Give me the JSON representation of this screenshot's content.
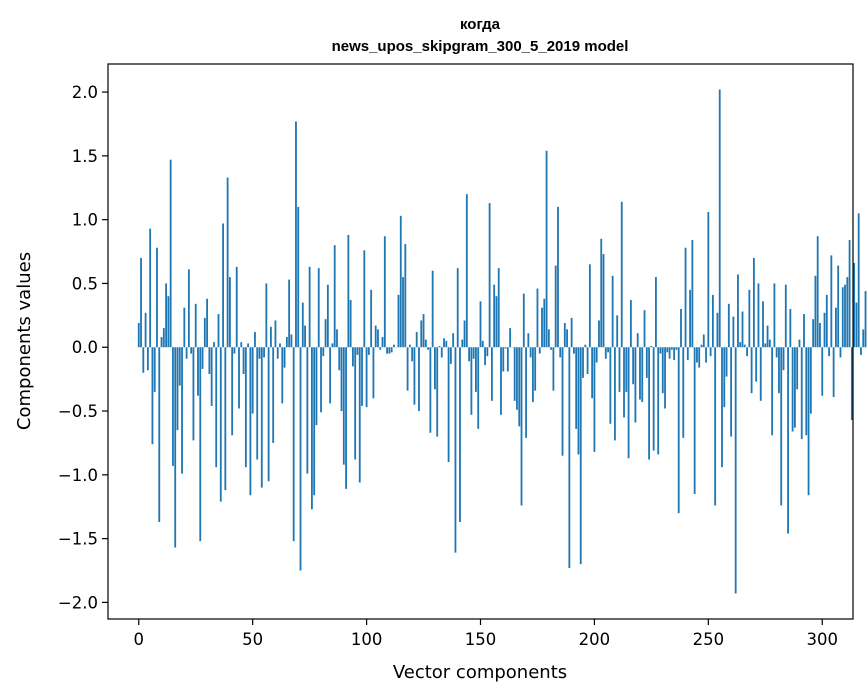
{
  "chart_data": {
    "type": "bar",
    "title": "когда",
    "subtitle": "news_upos_skipgram_300_5_2019 model",
    "xlabel": "Vector components",
    "ylabel": "Components values",
    "xlim": [
      -13.5,
      313.5
    ],
    "ylim": [
      -2.13,
      2.22
    ],
    "x_ticks": [
      0,
      50,
      100,
      150,
      200,
      250,
      300
    ],
    "x_tick_labels": [
      "0",
      "50",
      "100",
      "150",
      "200",
      "250",
      "300"
    ],
    "y_ticks": [
      -2.0,
      -1.5,
      -1.0,
      -0.5,
      0.0,
      0.5,
      1.0,
      1.5,
      2.0
    ],
    "y_tick_labels": [
      "−2.0",
      "−1.5",
      "−1.0",
      "−0.5",
      "0.0",
      "0.5",
      "1.0",
      "1.5",
      "2.0"
    ],
    "bar_color": "#1f77b4",
    "series": [
      {
        "name": "когда",
        "values": [
          0.19,
          0.7,
          -0.2,
          0.27,
          -0.18,
          0.93,
          -0.76,
          -0.35,
          0.78,
          -1.37,
          0.08,
          0.15,
          0.5,
          0.4,
          1.47,
          -0.93,
          -1.57,
          -0.65,
          -0.3,
          -0.99,
          0.31,
          -0.09,
          0.61,
          -0.05,
          -0.73,
          0.34,
          -0.38,
          -1.52,
          -0.17,
          0.23,
          0.38,
          -0.21,
          -0.46,
          0.04,
          -0.94,
          0.26,
          -1.21,
          0.97,
          -1.12,
          1.33,
          0.55,
          -0.69,
          -0.05,
          0.63,
          -0.48,
          0.04,
          -0.21,
          -0.94,
          0.03,
          -1.16,
          -0.52,
          0.12,
          -0.88,
          -0.09,
          -1.1,
          -0.08,
          0.5,
          -1.05,
          0.16,
          -0.75,
          0.21,
          -0.09,
          0.03,
          -0.44,
          -0.16,
          0.08,
          0.53,
          0.1,
          -1.52,
          1.77,
          1.1,
          -1.75,
          0.35,
          0.17,
          -0.99,
          0.63,
          -1.27,
          -1.16,
          -0.61,
          0.62,
          -0.51,
          -0.07,
          0.22,
          0.49,
          -0.44,
          0.03,
          0.8,
          0.14,
          -0.18,
          -0.5,
          -0.92,
          -1.11,
          0.88,
          0.37,
          -0.15,
          -0.88,
          -0.06,
          -1.06,
          -0.46,
          0.76,
          -0.47,
          -0.06,
          0.45,
          -0.4,
          0.17,
          0.14,
          -0.02,
          0.08,
          0.87,
          -0.05,
          -0.05,
          -0.04,
          0.02,
          0.0,
          0.41,
          1.03,
          0.55,
          0.81,
          -0.34,
          0.02,
          -0.11,
          -0.45,
          0.12,
          -0.5,
          0.21,
          0.26,
          0.06,
          -0.02,
          -0.67,
          0.6,
          -0.33,
          -0.7,
          0.01,
          -0.08,
          0.07,
          0.05,
          -0.9,
          -0.13,
          0.11,
          -1.61,
          0.62,
          -1.37,
          0.06,
          0.21,
          1.2,
          -0.11,
          -0.53,
          -0.09,
          -0.35,
          -0.64,
          0.36,
          0.05,
          -0.14,
          -0.07,
          1.13,
          -0.42,
          0.49,
          0.4,
          0.62,
          -0.53,
          -0.19,
          -0.01,
          -0.19,
          0.15,
          0.0,
          -0.42,
          -0.49,
          -0.62,
          -1.24,
          0.42,
          -0.71,
          0.11,
          -0.08,
          -0.43,
          -0.34,
          0.46,
          -0.05,
          0.31,
          0.38,
          1.54,
          0.14,
          -0.02,
          -0.34,
          0.64,
          1.1,
          -0.08,
          -0.85,
          0.19,
          0.14,
          -1.73,
          0.23,
          -0.05,
          -0.64,
          -0.84,
          -1.7,
          -0.24,
          0.02,
          -0.21,
          0.65,
          -0.4,
          -0.82,
          -0.12,
          0.21,
          0.85,
          0.73,
          -0.09,
          -0.04,
          -0.6,
          0.56,
          -0.73,
          0.25,
          -0.35,
          1.14,
          -0.55,
          -0.35,
          -0.87,
          0.37,
          -0.29,
          -0.59,
          0.11,
          -0.41,
          -0.43,
          0.29,
          -0.24,
          -0.88,
          0.01,
          -0.81,
          0.55,
          -0.84,
          -0.05,
          -0.36,
          -0.48,
          -0.04,
          -0.09,
          -0.02,
          -0.1,
          -0.02,
          -1.3,
          0.3,
          -0.71,
          0.78,
          -0.1,
          0.45,
          0.84,
          -1.15,
          -0.12,
          -0.16,
          0.02,
          0.1,
          -0.12,
          1.06,
          -0.07,
          0.41,
          -1.24,
          0.27,
          2.02,
          -0.94,
          -0.47,
          -0.23,
          0.34,
          -0.7,
          0.24,
          -1.93,
          0.57,
          0.04,
          0.28,
          0.02,
          -0.07,
          0.45,
          -0.36,
          0.7,
          -0.27,
          0.5,
          -0.42,
          0.36,
          0.03,
          0.17,
          0.06,
          -0.69,
          0.5,
          -0.08,
          -0.36,
          -1.24,
          -0.18,
          0.49,
          -1.46,
          0.3,
          -0.66,
          -0.63,
          -0.33,
          0.06,
          -0.72,
          0.26,
          -0.69,
          -1.16,
          -0.52,
          0.22,
          0.56,
          0.87,
          0.19,
          -0.38,
          0.27,
          0.41,
          -0.07,
          0.72,
          -0.39,
          0.31,
          0.64,
          -0.08,
          0.47,
          0.49,
          0.55,
          0.84,
          -0.57,
          0.66,
          0.35,
          1.05,
          -0.06,
          0.14,
          0.44
        ]
      }
    ]
  }
}
